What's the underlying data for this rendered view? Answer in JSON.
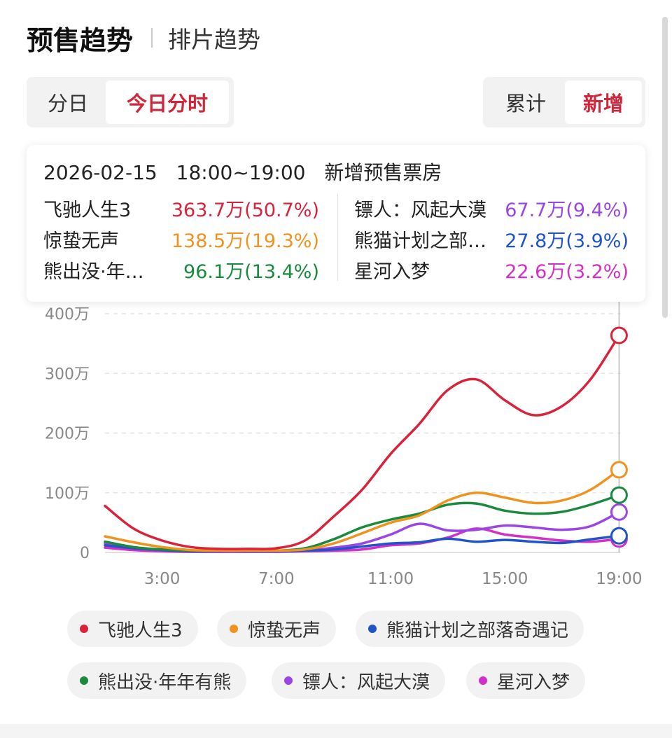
{
  "header": {
    "title": "预售趋势",
    "tab2": "排片趋势"
  },
  "seg_left": {
    "opt1": "分日",
    "opt2": "今日分时"
  },
  "seg_right": {
    "opt1": "累计",
    "opt2": "新增"
  },
  "tooltip": {
    "date": "2026-02-15",
    "time": "18:00~19:00",
    "label": "新增预售票房",
    "rows": [
      {
        "name": "飞驰人生3",
        "value": "363.7万(50.7%)",
        "color": "#d8233a"
      },
      {
        "name": "惊蛰无声",
        "value": "138.5万(19.3%)",
        "color": "#f0921e"
      },
      {
        "name": "熊出没·年…",
        "value": "96.1万(13.4%)",
        "color": "#1a8a3c"
      },
      {
        "name": "镖人：风起大漠",
        "value": "67.7万(9.4%)",
        "color": "#9b45e4"
      },
      {
        "name": "熊猫计划之部…",
        "value": "27.8万(3.9%)",
        "color": "#1f55c9"
      },
      {
        "name": "星河入梦",
        "value": "22.6万(3.2%)",
        "color": "#d42fc8"
      }
    ]
  },
  "chart_data": {
    "type": "line",
    "x": [
      "1:00",
      "2:00",
      "3:00",
      "4:00",
      "5:00",
      "6:00",
      "7:00",
      "8:00",
      "9:00",
      "10:00",
      "11:00",
      "12:00",
      "13:00",
      "14:00",
      "15:00",
      "16:00",
      "17:00",
      "18:00",
      "19:00"
    ],
    "xticks": [
      "3:00",
      "7:00",
      "11:00",
      "15:00",
      "19:00"
    ],
    "yticks": [
      "0",
      "100万",
      "200万",
      "300万",
      "400万"
    ],
    "ylim": [
      0,
      400
    ],
    "grid": true,
    "legend_position": "bottom",
    "series": [
      {
        "name": "飞驰人生3",
        "color": "#d8233a",
        "values": [
          78,
          40,
          20,
          9,
          6,
          6,
          7,
          20,
          60,
          105,
          165,
          215,
          272,
          290,
          255,
          230,
          245,
          290,
          363.7
        ]
      },
      {
        "name": "惊蛰无声",
        "color": "#f0921e",
        "values": [
          27,
          17,
          9,
          4,
          3,
          3,
          3,
          5,
          15,
          32,
          50,
          62,
          87,
          100,
          92,
          83,
          87,
          105,
          138.5
        ]
      },
      {
        "name": "熊猫计划之部落奇遇记",
        "color": "#1f55c9",
        "values": [
          12,
          7,
          4,
          2,
          2,
          2,
          2,
          3,
          5,
          10,
          15,
          17,
          23,
          18,
          21,
          18,
          16,
          22,
          27.8
        ]
      },
      {
        "name": "熊出没·年年有熊",
        "color": "#1a8a3c",
        "values": [
          18,
          9,
          5,
          3,
          3,
          3,
          3,
          7,
          22,
          42,
          55,
          65,
          80,
          82,
          70,
          65,
          68,
          80,
          96.1
        ]
      },
      {
        "name": "镖人：风起大漠",
        "color": "#9b45e4",
        "values": [
          15,
          8,
          4,
          2,
          2,
          2,
          2,
          3,
          8,
          15,
          30,
          48,
          37,
          38,
          45,
          42,
          38,
          44,
          67.7
        ]
      },
      {
        "name": "星河入梦",
        "color": "#d42fc8",
        "values": [
          8,
          4,
          2,
          1,
          1,
          1,
          1,
          2,
          3,
          5,
          12,
          15,
          25,
          40,
          30,
          25,
          20,
          18,
          22.6
        ]
      }
    ]
  }
}
